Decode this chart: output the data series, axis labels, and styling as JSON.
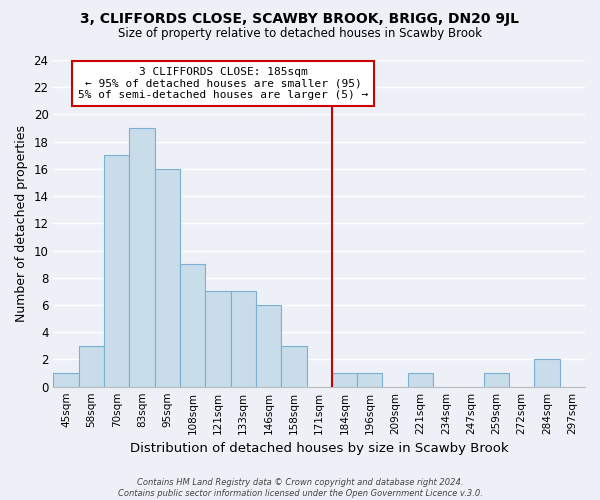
{
  "title": "3, CLIFFORDS CLOSE, SCAWBY BROOK, BRIGG, DN20 9JL",
  "subtitle": "Size of property relative to detached houses in Scawby Brook",
  "xlabel": "Distribution of detached houses by size in Scawby Brook",
  "ylabel": "Number of detached properties",
  "footer_line1": "Contains HM Land Registry data © Crown copyright and database right 2024.",
  "footer_line2": "Contains public sector information licensed under the Open Government Licence v.3.0.",
  "bin_labels": [
    "45sqm",
    "58sqm",
    "70sqm",
    "83sqm",
    "95sqm",
    "108sqm",
    "121sqm",
    "133sqm",
    "146sqm",
    "158sqm",
    "171sqm",
    "184sqm",
    "196sqm",
    "209sqm",
    "221sqm",
    "234sqm",
    "247sqm",
    "259sqm",
    "272sqm",
    "284sqm",
    "297sqm"
  ],
  "bin_values": [
    1,
    3,
    17,
    19,
    16,
    9,
    7,
    7,
    6,
    3,
    0,
    1,
    1,
    0,
    1,
    0,
    0,
    1,
    0,
    2,
    0
  ],
  "bar_color": "#c9dcea",
  "bar_edge_color": "#7aafd4",
  "reference_line_x_label": "184sqm",
  "annotation_title": "3 CLIFFORDS CLOSE: 185sqm",
  "annotation_line1": "← 95% of detached houses are smaller (95)",
  "annotation_line2": "5% of semi-detached houses are larger (5) →",
  "ylim": [
    0,
    24
  ],
  "yticks": [
    0,
    2,
    4,
    6,
    8,
    10,
    12,
    14,
    16,
    18,
    20,
    22,
    24
  ],
  "background_color": "#edf1f7",
  "grid_color": "#ffffff",
  "annotation_box_color": "#ffffff",
  "annotation_box_edge": "#cc0000",
  "ref_line_color": "#cc0000"
}
